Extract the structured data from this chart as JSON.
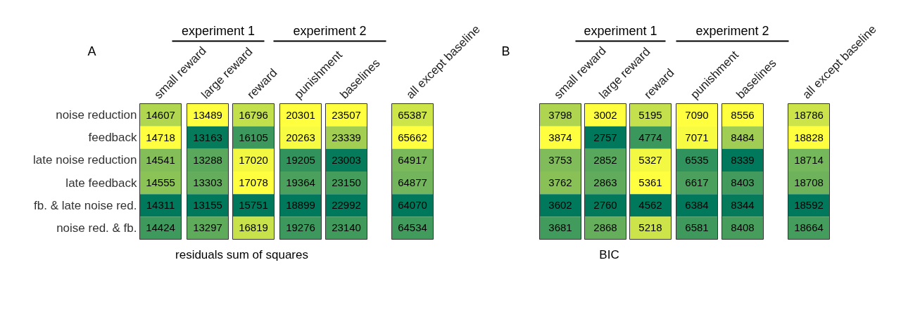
{
  "chart_data": {
    "type": "heatmap",
    "categories": [
      "small reward",
      "large reward",
      "reward",
      "punishment",
      "baselines",
      "all except baseline",
      "small reward",
      "large reward",
      "reward",
      "punishment",
      "baselines",
      "all except baseline"
    ],
    "y_categories": [
      "noise reduction",
      "feedback",
      "late noise reduction",
      "late feedback",
      "fb. & late noise red.",
      "noise red. & fb."
    ],
    "xlabel": "residuals sum of squares",
    "data_labels": true,
    "annotations": [
      "A",
      "experiment 1",
      "experiment 2",
      "B",
      "experiment 1",
      "experiment 2",
      "BIC"
    ],
    "cells": [
      [
        14607,
        13489,
        16796,
        20301,
        23507,
        65387,
        3798,
        3002,
        5195,
        7090,
        8556,
        18786
      ],
      [
        14718,
        13163,
        16105,
        20263,
        23339,
        65662,
        3874,
        2757,
        4774,
        7071,
        8484,
        18828
      ],
      [
        14541,
        13288,
        17020,
        19205,
        23003,
        64917,
        3753,
        2852,
        5327,
        6535,
        8339,
        18714
      ],
      [
        14555,
        13303,
        17078,
        19364,
        23150,
        64877,
        3762,
        2863,
        5361,
        6617,
        8403,
        18708
      ],
      [
        14311,
        13155,
        15751,
        18899,
        22992,
        64070,
        3602,
        2760,
        4562,
        6384,
        8344,
        18592
      ],
      [
        14424,
        13297,
        16819,
        19276,
        23140,
        64534,
        3681,
        2868,
        5218,
        6581,
        8408,
        18664
      ]
    ]
  }
}
